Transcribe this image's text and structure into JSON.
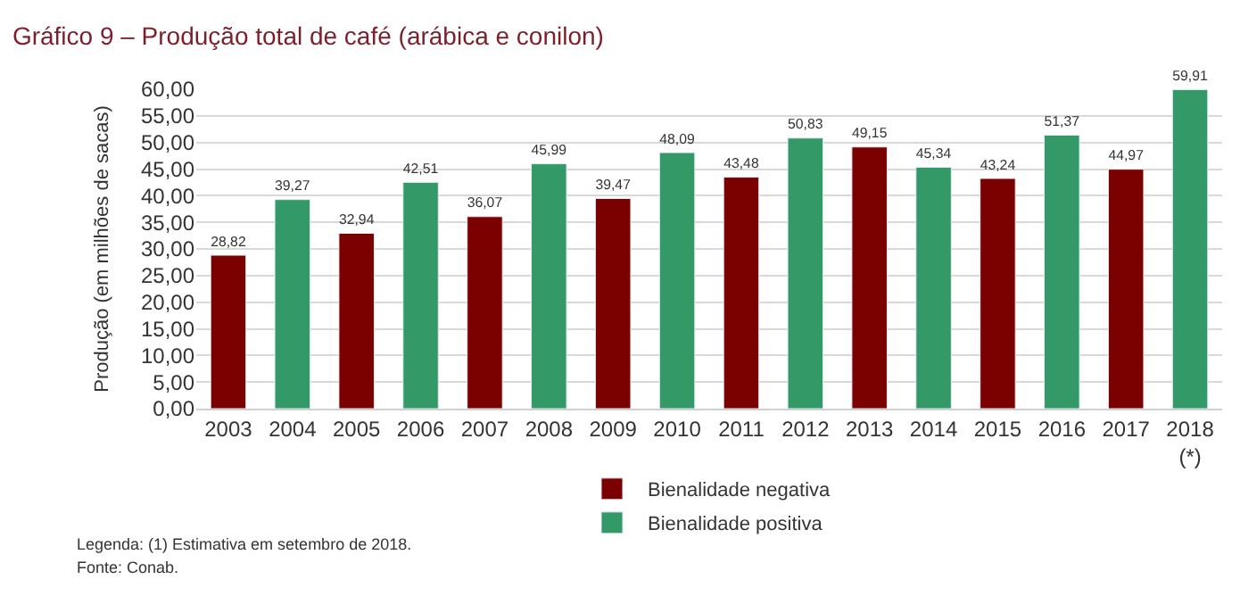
{
  "chart_data": {
    "type": "bar",
    "title": "Gráfico 9 – Produção total de café (arábica e conilon)",
    "ylabel": "Produção (em milhões de sacas)",
    "categories": [
      "2003",
      "2004",
      "2005",
      "2006",
      "2007",
      "2008",
      "2009",
      "2010",
      "2011",
      "2012",
      "2013",
      "2014",
      "2015",
      "2016",
      "2017",
      "2018\n(*)"
    ],
    "series": [
      {
        "name": "Bienalidade negativa",
        "color": "#7b0000",
        "values": [
          28.82,
          null,
          32.94,
          null,
          36.07,
          null,
          39.47,
          null,
          43.48,
          null,
          49.15,
          null,
          43.24,
          null,
          44.97,
          null
        ],
        "value_labels": [
          "28,82",
          null,
          "32,94",
          null,
          "36,07",
          null,
          "39,47",
          null,
          "43,48",
          null,
          "49,15",
          null,
          "43,24",
          null,
          "44,97",
          null
        ]
      },
      {
        "name": "Bienalidade positiva",
        "color": "#339966",
        "values": [
          null,
          39.27,
          null,
          42.51,
          null,
          45.99,
          null,
          48.09,
          null,
          50.83,
          null,
          45.34,
          null,
          51.37,
          null,
          59.91
        ],
        "value_labels": [
          null,
          "39,27",
          null,
          "42,51",
          null,
          "45,99",
          null,
          "48,09",
          null,
          "50,83",
          null,
          "45,34",
          null,
          "51,37",
          null,
          "59,91"
        ]
      }
    ],
    "ylim": [
      0,
      60
    ],
    "yticks": [
      {
        "value": 0,
        "label": "0,00"
      },
      {
        "value": 5,
        "label": "5,00"
      },
      {
        "value": 10,
        "label": "10,00"
      },
      {
        "value": 15,
        "label": "15,00"
      },
      {
        "value": 20,
        "label": "20,00"
      },
      {
        "value": 25,
        "label": "25,00"
      },
      {
        "value": 30,
        "label": "30,00"
      },
      {
        "value": 35,
        "label": "35,00"
      },
      {
        "value": 40,
        "label": "40,00"
      },
      {
        "value": 45,
        "label": "45,00"
      },
      {
        "value": 50,
        "label": "50,00"
      },
      {
        "value": 55,
        "label": "55,00"
      },
      {
        "value": 60,
        "label": "60,00"
      }
    ],
    "grid": "y",
    "legend": "bottom",
    "annotations": [
      "Legenda: (1) Estimativa em setembro de 2018.",
      "Fonte: Conab."
    ]
  }
}
